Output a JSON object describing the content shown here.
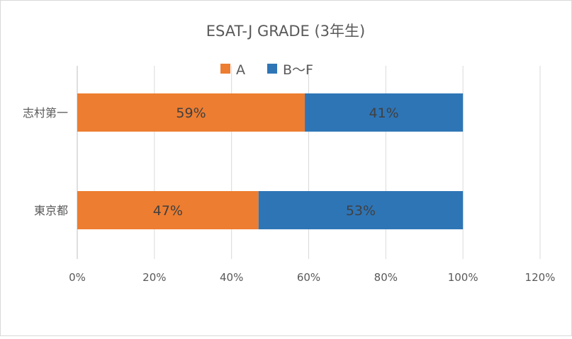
{
  "chart_data": {
    "type": "bar",
    "orientation": "horizontal",
    "stacked": true,
    "title": "ESAT-J GRADE (3年生)",
    "categories": [
      "志村第一",
      "東京都"
    ],
    "series": [
      {
        "name": "A",
        "values": [
          59,
          47
        ],
        "labels": [
          "59%",
          "47%"
        ],
        "color": "#ED7D31"
      },
      {
        "name": "B〜F",
        "values": [
          41,
          53
        ],
        "labels": [
          "41%",
          "53%"
        ],
        "color": "#2E75B6"
      }
    ],
    "xlim": [
      0,
      120
    ],
    "xticks": [
      0,
      20,
      40,
      60,
      80,
      100,
      120
    ],
    "xtick_labels": [
      "0%",
      "20%",
      "40%",
      "60%",
      "80%",
      "100%",
      "120%"
    ],
    "grid": true,
    "legend_position": "top"
  }
}
